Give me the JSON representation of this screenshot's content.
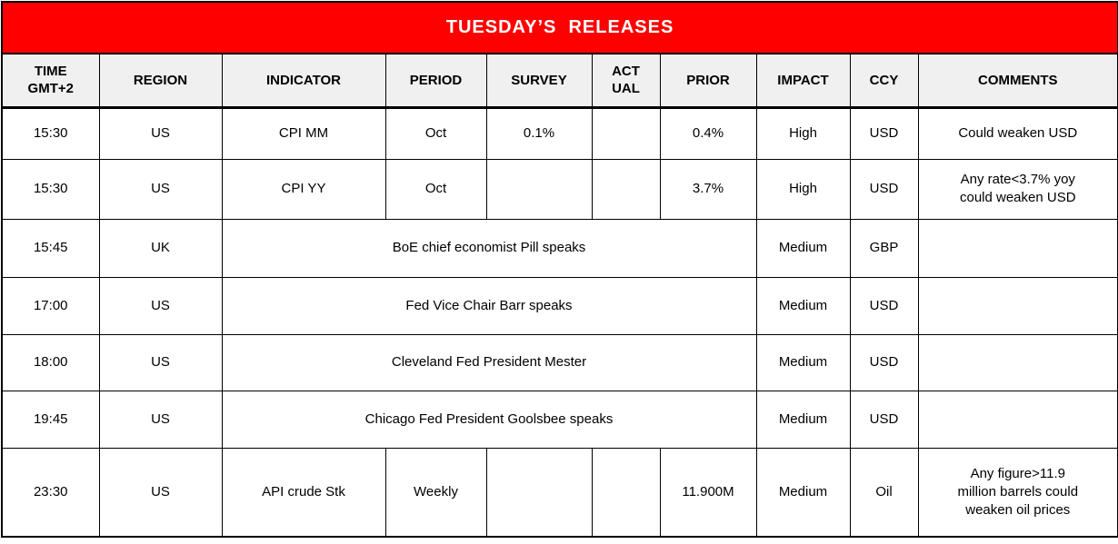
{
  "title": "TUESDAY’S  RELEASES",
  "colors": {
    "banner_bg": "#ff0000",
    "banner_text": "#ffffff",
    "header_bg": "#f0f0f0",
    "border": "#000000",
    "cell_bg": "#ffffff",
    "text": "#000000"
  },
  "table": {
    "columns": [
      {
        "key": "time",
        "label": "TIME\nGMT+2"
      },
      {
        "key": "region",
        "label": "REGION"
      },
      {
        "key": "indicator",
        "label": "INDICATOR"
      },
      {
        "key": "period",
        "label": "PERIOD"
      },
      {
        "key": "survey",
        "label": "SURVEY"
      },
      {
        "key": "actual",
        "label": "ACT\nUAL"
      },
      {
        "key": "prior",
        "label": "PRIOR"
      },
      {
        "key": "impact",
        "label": "IMPACT"
      },
      {
        "key": "ccy",
        "label": "CCY"
      },
      {
        "key": "comments",
        "label": "COMMENTS"
      }
    ],
    "rows": [
      {
        "cells": [
          "15:30",
          "US",
          "CPI MM",
          "Oct",
          "0.1%",
          "",
          "0.4%",
          "High",
          "USD",
          "Could weaken USD"
        ]
      },
      {
        "cells": [
          "15:30",
          "US",
          "CPI YY",
          "Oct",
          "",
          "",
          "3.7%",
          "High",
          "USD",
          "Any rate<3.7% yoy\ncould weaken USD"
        ]
      },
      {
        "cells": [
          "15:45",
          "UK",
          {
            "text": "BoE chief economist Pill speaks",
            "span": 5
          },
          "Medium",
          "GBP",
          ""
        ]
      },
      {
        "cells": [
          "17:00",
          "US",
          {
            "text": "Fed Vice Chair Barr speaks",
            "span": 5
          },
          "Medium",
          "USD",
          ""
        ]
      },
      {
        "cells": [
          "18:00",
          "US",
          {
            "text": "Cleveland Fed President Mester",
            "span": 5
          },
          "Medium",
          "USD",
          ""
        ]
      },
      {
        "cells": [
          "19:45",
          "US",
          {
            "text": "Chicago Fed President Goolsbee speaks",
            "span": 5
          },
          "Medium",
          "USD",
          ""
        ]
      },
      {
        "cells": [
          "23:30",
          "US",
          "API crude Stk",
          "Weekly",
          "",
          "",
          "11.900M",
          "Medium",
          "Oil",
          "Any figure>11.9\nmillion barrels could\nweaken oil prices"
        ]
      }
    ]
  }
}
